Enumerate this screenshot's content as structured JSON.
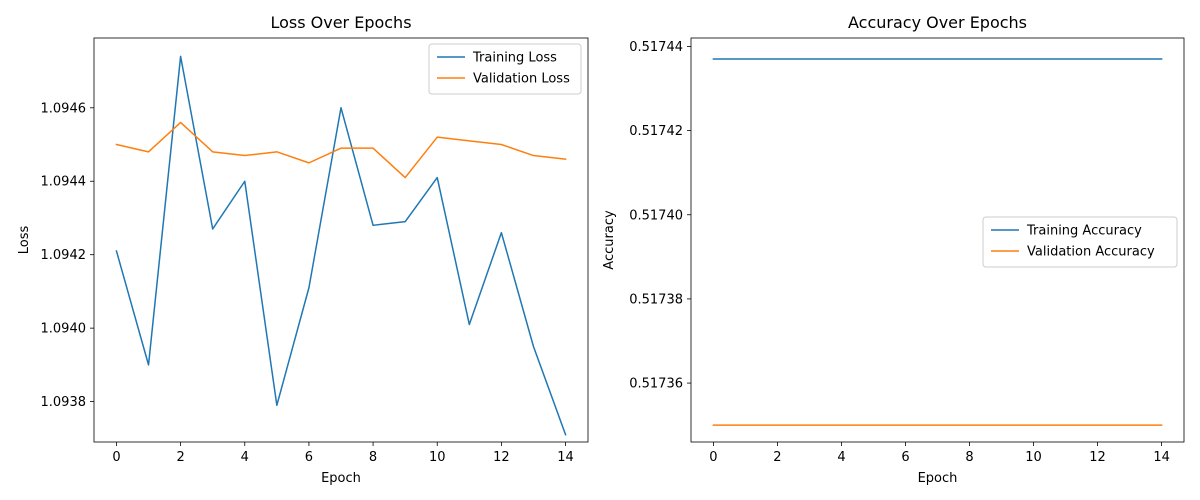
{
  "chart_data": [
    {
      "type": "line",
      "title": "Loss Over Epochs",
      "xlabel": "Epoch",
      "ylabel": "Loss",
      "x": [
        0,
        1,
        2,
        3,
        4,
        5,
        6,
        7,
        8,
        9,
        10,
        11,
        12,
        13,
        14
      ],
      "xlim": [
        -0.7,
        14.7
      ],
      "ylim": [
        1.09369,
        1.09479
      ],
      "xticks": [
        0,
        2,
        4,
        6,
        8,
        10,
        12,
        14
      ],
      "xtick_labels": [
        "0",
        "2",
        "4",
        "6",
        "8",
        "10",
        "12",
        "14"
      ],
      "yticks": [
        1.0938,
        1.094,
        1.0942,
        1.0944,
        1.0946
      ],
      "ytick_labels": [
        "1.0938",
        "1.0940",
        "1.0942",
        "1.0944",
        "1.0946"
      ],
      "legend_position": "top-right",
      "series": [
        {
          "name": "Training Loss",
          "color": "#1f77b4",
          "values": [
            1.09421,
            1.0939,
            1.09474,
            1.09427,
            1.0944,
            1.09379,
            1.09411,
            1.0946,
            1.09428,
            1.09429,
            1.09441,
            1.09401,
            1.09426,
            1.09395,
            1.09371
          ]
        },
        {
          "name": "Validation Loss",
          "color": "#ff7f0e",
          "values": [
            1.0945,
            1.09448,
            1.09456,
            1.09448,
            1.09447,
            1.09448,
            1.09445,
            1.09449,
            1.09449,
            1.09441,
            1.09452,
            1.09451,
            1.0945,
            1.09447,
            1.09446
          ]
        }
      ]
    },
    {
      "type": "line",
      "title": "Accuracy Over Epochs",
      "xlabel": "Epoch",
      "ylabel": "Accuracy",
      "x": [
        0,
        1,
        2,
        3,
        4,
        5,
        6,
        7,
        8,
        9,
        10,
        11,
        12,
        13,
        14
      ],
      "xlim": [
        -0.7,
        14.7
      ],
      "ylim": [
        0.517346,
        0.517442
      ],
      "xticks": [
        0,
        2,
        4,
        6,
        8,
        10,
        12,
        14
      ],
      "xtick_labels": [
        "0",
        "2",
        "4",
        "6",
        "8",
        "10",
        "12",
        "14"
      ],
      "yticks": [
        0.51736,
        0.51738,
        0.5174,
        0.51742,
        0.51744
      ],
      "ytick_labels": [
        "0.51736",
        "0.51738",
        "0.51740",
        "0.51742",
        "0.51744"
      ],
      "legend_position": "center-right",
      "series": [
        {
          "name": "Training Accuracy",
          "color": "#1f77b4",
          "values": [
            0.517437,
            0.517437,
            0.517437,
            0.517437,
            0.517437,
            0.517437,
            0.517437,
            0.517437,
            0.517437,
            0.517437,
            0.517437,
            0.517437,
            0.517437,
            0.517437,
            0.517437
          ]
        },
        {
          "name": "Validation Accuracy",
          "color": "#ff7f0e",
          "values": [
            0.51735,
            0.51735,
            0.51735,
            0.51735,
            0.51735,
            0.51735,
            0.51735,
            0.51735,
            0.51735,
            0.51735,
            0.51735,
            0.51735,
            0.51735,
            0.51735,
            0.51735
          ]
        }
      ]
    }
  ]
}
